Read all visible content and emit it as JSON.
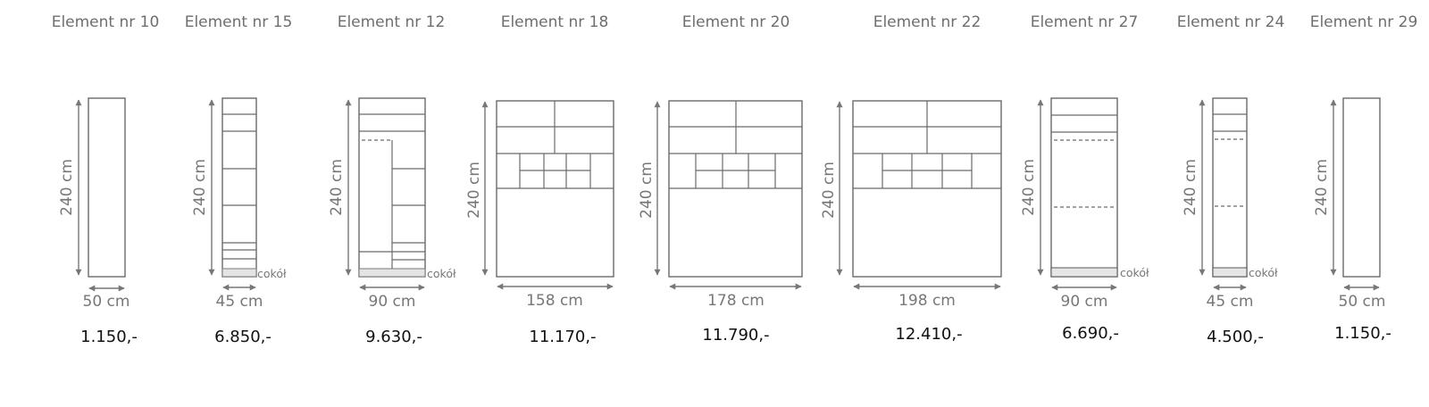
{
  "colors": {
    "line": "#6a6a6a",
    "text": "#6e6e6e",
    "price": "#111111",
    "plinth": "#e4e4e4"
  },
  "elements": [
    {
      "title": "Element nr 10",
      "height": "240 cm",
      "width": "50 cm",
      "price": "1.150,-"
    },
    {
      "title": "Element nr 15",
      "height": "240 cm",
      "width": "45 cm",
      "price": "6.850,-",
      "plinth": "cokół"
    },
    {
      "title": "Element nr 12",
      "height": "240 cm",
      "width": "90 cm",
      "price": "9.630,-",
      "plinth": "cokół"
    },
    {
      "title": "Element nr 18",
      "height": "240 cm",
      "width": "158 cm",
      "price": "11.170,-"
    },
    {
      "title": "Element nr 20",
      "height": "240 cm",
      "width": "178 cm",
      "price": "11.790,-"
    },
    {
      "title": "Element nr 22",
      "height": "240 cm",
      "width": "198 cm",
      "price": "12.410,-"
    },
    {
      "title": "Element nr 27",
      "height": "240 cm",
      "width": "90 cm",
      "price": "6.690,-",
      "plinth": "cokół"
    },
    {
      "title": "Element nr 24",
      "height": "240 cm",
      "width": "45 cm",
      "price": "4.500,-",
      "plinth": "cokół"
    },
    {
      "title": "Element nr 29",
      "height": "240 cm",
      "width": "50 cm",
      "price": "1.150,-"
    }
  ]
}
